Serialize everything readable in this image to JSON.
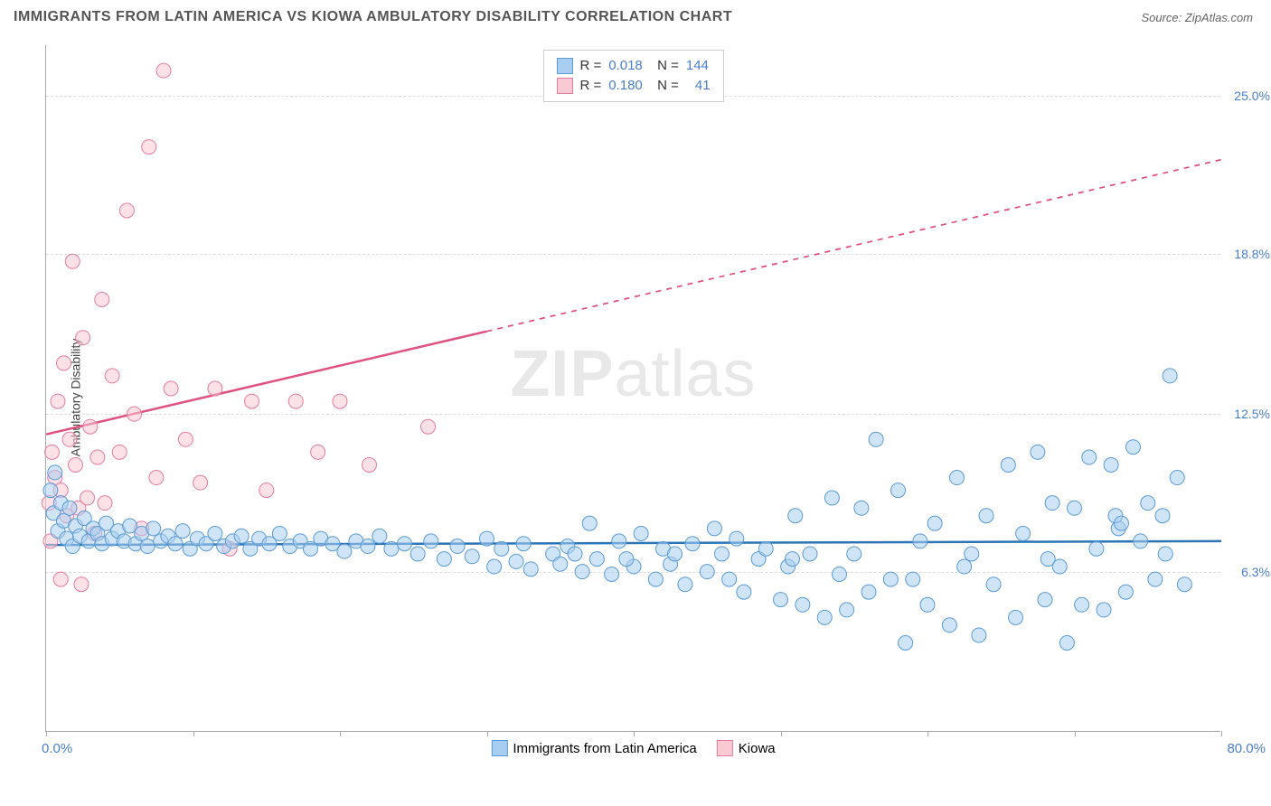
{
  "title": "IMMIGRANTS FROM LATIN AMERICA VS KIOWA AMBULATORY DISABILITY CORRELATION CHART",
  "source": "Source: ZipAtlas.com",
  "watermark_bold": "ZIP",
  "watermark_light": "atlas",
  "y_axis_title": "Ambulatory Disability",
  "x_axis": {
    "min_label": "0.0%",
    "max_label": "80.0%",
    "min": 0,
    "max": 80,
    "tick_positions": [
      0,
      10,
      20,
      30,
      40,
      50,
      60,
      70,
      80
    ]
  },
  "y_axis": {
    "min": 0,
    "max": 27,
    "grid_values": [
      6.3,
      12.5,
      18.8,
      25.0
    ],
    "grid_labels": [
      "6.3%",
      "12.5%",
      "18.8%",
      "25.0%"
    ]
  },
  "series": {
    "blue": {
      "label": "Immigrants from Latin America",
      "fill": "#a9cdf0",
      "stroke": "#5b9bd5",
      "fill_opacity": 0.55,
      "marker_r": 8,
      "R": "0.018",
      "N": "144",
      "trend": {
        "y_at_xmin": 7.35,
        "y_at_xmax": 7.5,
        "solid_until_x": 80,
        "color": "#2e75b6",
        "width": 2.5
      },
      "points": [
        [
          0.3,
          9.5
        ],
        [
          0.5,
          8.6
        ],
        [
          0.6,
          10.2
        ],
        [
          0.8,
          7.9
        ],
        [
          1.0,
          9.0
        ],
        [
          1.2,
          8.3
        ],
        [
          1.4,
          7.6
        ],
        [
          1.6,
          8.8
        ],
        [
          1.8,
          7.3
        ],
        [
          2.0,
          8.1
        ],
        [
          2.3,
          7.7
        ],
        [
          2.6,
          8.4
        ],
        [
          2.9,
          7.5
        ],
        [
          3.2,
          8.0
        ],
        [
          3.5,
          7.8
        ],
        [
          3.8,
          7.4
        ],
        [
          4.1,
          8.2
        ],
        [
          4.5,
          7.6
        ],
        [
          4.9,
          7.9
        ],
        [
          5.3,
          7.5
        ],
        [
          5.7,
          8.1
        ],
        [
          6.1,
          7.4
        ],
        [
          6.5,
          7.8
        ],
        [
          6.9,
          7.3
        ],
        [
          7.3,
          8.0
        ],
        [
          7.8,
          7.5
        ],
        [
          8.3,
          7.7
        ],
        [
          8.8,
          7.4
        ],
        [
          9.3,
          7.9
        ],
        [
          9.8,
          7.2
        ],
        [
          10.3,
          7.6
        ],
        [
          10.9,
          7.4
        ],
        [
          11.5,
          7.8
        ],
        [
          12.1,
          7.3
        ],
        [
          12.7,
          7.5
        ],
        [
          13.3,
          7.7
        ],
        [
          13.9,
          7.2
        ],
        [
          14.5,
          7.6
        ],
        [
          15.2,
          7.4
        ],
        [
          15.9,
          7.8
        ],
        [
          16.6,
          7.3
        ],
        [
          17.3,
          7.5
        ],
        [
          18.0,
          7.2
        ],
        [
          18.7,
          7.6
        ],
        [
          19.5,
          7.4
        ],
        [
          20.3,
          7.1
        ],
        [
          21.1,
          7.5
        ],
        [
          21.9,
          7.3
        ],
        [
          22.7,
          7.7
        ],
        [
          23.5,
          7.2
        ],
        [
          24.4,
          7.4
        ],
        [
          25.3,
          7.0
        ],
        [
          26.2,
          7.5
        ],
        [
          27.1,
          6.8
        ],
        [
          28.0,
          7.3
        ],
        [
          29.0,
          6.9
        ],
        [
          30.0,
          7.6
        ],
        [
          30.5,
          6.5
        ],
        [
          31.0,
          7.2
        ],
        [
          32.0,
          6.7
        ],
        [
          32.5,
          7.4
        ],
        [
          33.0,
          6.4
        ],
        [
          34.5,
          7.0
        ],
        [
          35.0,
          6.6
        ],
        [
          35.5,
          7.3
        ],
        [
          36.5,
          6.3
        ],
        [
          37.0,
          8.2
        ],
        [
          37.5,
          6.8
        ],
        [
          38.5,
          6.2
        ],
        [
          39.0,
          7.5
        ],
        [
          40.0,
          6.5
        ],
        [
          40.5,
          7.8
        ],
        [
          41.5,
          6.0
        ],
        [
          42.0,
          7.2
        ],
        [
          42.5,
          6.6
        ],
        [
          43.5,
          5.8
        ],
        [
          44.0,
          7.4
        ],
        [
          45.0,
          6.3
        ],
        [
          45.5,
          8.0
        ],
        [
          46.5,
          6.0
        ],
        [
          47.0,
          7.6
        ],
        [
          47.5,
          5.5
        ],
        [
          48.5,
          6.8
        ],
        [
          49.0,
          7.2
        ],
        [
          50.0,
          5.2
        ],
        [
          50.5,
          6.5
        ],
        [
          51.0,
          8.5
        ],
        [
          51.5,
          5.0
        ],
        [
          52.0,
          7.0
        ],
        [
          53.0,
          4.5
        ],
        [
          53.5,
          9.2
        ],
        [
          54.0,
          6.2
        ],
        [
          54.5,
          4.8
        ],
        [
          55.5,
          8.8
        ],
        [
          56.0,
          5.5
        ],
        [
          56.5,
          11.5
        ],
        [
          57.5,
          6.0
        ],
        [
          58.0,
          9.5
        ],
        [
          58.5,
          3.5
        ],
        [
          59.5,
          7.5
        ],
        [
          60.0,
          5.0
        ],
        [
          60.5,
          8.2
        ],
        [
          61.5,
          4.2
        ],
        [
          62.0,
          10.0
        ],
        [
          62.5,
          6.5
        ],
        [
          63.5,
          3.8
        ],
        [
          64.0,
          8.5
        ],
        [
          64.5,
          5.8
        ],
        [
          65.5,
          10.5
        ],
        [
          66.0,
          4.5
        ],
        [
          66.5,
          7.8
        ],
        [
          67.5,
          11.0
        ],
        [
          68.0,
          5.2
        ],
        [
          68.5,
          9.0
        ],
        [
          69.0,
          6.5
        ],
        [
          69.5,
          3.5
        ],
        [
          70.0,
          8.8
        ],
        [
          70.5,
          5.0
        ],
        [
          71.0,
          10.8
        ],
        [
          71.5,
          7.2
        ],
        [
          72.0,
          4.8
        ],
        [
          72.5,
          10.5
        ],
        [
          73.0,
          8.0
        ],
        [
          73.5,
          5.5
        ],
        [
          74.0,
          11.2
        ],
        [
          74.5,
          7.5
        ],
        [
          75.0,
          9.0
        ],
        [
          75.5,
          6.0
        ],
        [
          76.0,
          8.5
        ],
        [
          76.5,
          14.0
        ],
        [
          77.0,
          10.0
        ],
        [
          77.5,
          5.8
        ],
        [
          72.8,
          8.5
        ],
        [
          73.2,
          8.2
        ],
        [
          76.2,
          7.0
        ],
        [
          68.2,
          6.8
        ],
        [
          63.0,
          7.0
        ],
        [
          59.0,
          6.0
        ],
        [
          55.0,
          7.0
        ],
        [
          50.8,
          6.8
        ],
        [
          46.0,
          7.0
        ],
        [
          42.8,
          7.0
        ],
        [
          39.5,
          6.8
        ],
        [
          36.0,
          7.0
        ]
      ]
    },
    "pink": {
      "label": "Kiowa",
      "fill": "#f9c9d4",
      "stroke": "#e87ca0",
      "fill_opacity": 0.55,
      "marker_r": 8,
      "R": "0.180",
      "N": "41",
      "trend": {
        "y_at_xmin": 11.7,
        "y_at_xmax": 22.5,
        "solid_until_x": 30,
        "color": "#e05080",
        "width": 2.5
      },
      "points": [
        [
          0.2,
          9.0
        ],
        [
          0.4,
          11.0
        ],
        [
          0.6,
          10.0
        ],
        [
          0.8,
          13.0
        ],
        [
          1.0,
          9.5
        ],
        [
          1.2,
          14.5
        ],
        [
          1.4,
          8.5
        ],
        [
          1.6,
          11.5
        ],
        [
          0.3,
          7.5
        ],
        [
          1.8,
          18.5
        ],
        [
          2.0,
          10.5
        ],
        [
          2.2,
          8.8
        ],
        [
          2.5,
          15.5
        ],
        [
          2.8,
          9.2
        ],
        [
          3.0,
          12.0
        ],
        [
          3.3,
          7.8
        ],
        [
          3.5,
          10.8
        ],
        [
          3.8,
          17.0
        ],
        [
          4.0,
          9.0
        ],
        [
          4.5,
          14.0
        ],
        [
          5.0,
          11.0
        ],
        [
          5.5,
          20.5
        ],
        [
          6.0,
          12.5
        ],
        [
          6.5,
          8.0
        ],
        [
          7.0,
          23.0
        ],
        [
          7.5,
          10.0
        ],
        [
          8.0,
          26.0
        ],
        [
          8.5,
          13.5
        ],
        [
          9.5,
          11.5
        ],
        [
          10.5,
          9.8
        ],
        [
          11.5,
          13.5
        ],
        [
          12.5,
          7.2
        ],
        [
          14.0,
          13.0
        ],
        [
          15.0,
          9.5
        ],
        [
          17.0,
          13.0
        ],
        [
          18.5,
          11.0
        ],
        [
          20.0,
          13.0
        ],
        [
          22.0,
          10.5
        ],
        [
          26.0,
          12.0
        ],
        [
          1.0,
          6.0
        ],
        [
          2.4,
          5.8
        ]
      ]
    }
  },
  "colors": {
    "background": "#ffffff",
    "grid": "#dddddd",
    "axis": "#aaaaaa",
    "tick_label": "#4a7ec9",
    "title_text": "#555555"
  }
}
